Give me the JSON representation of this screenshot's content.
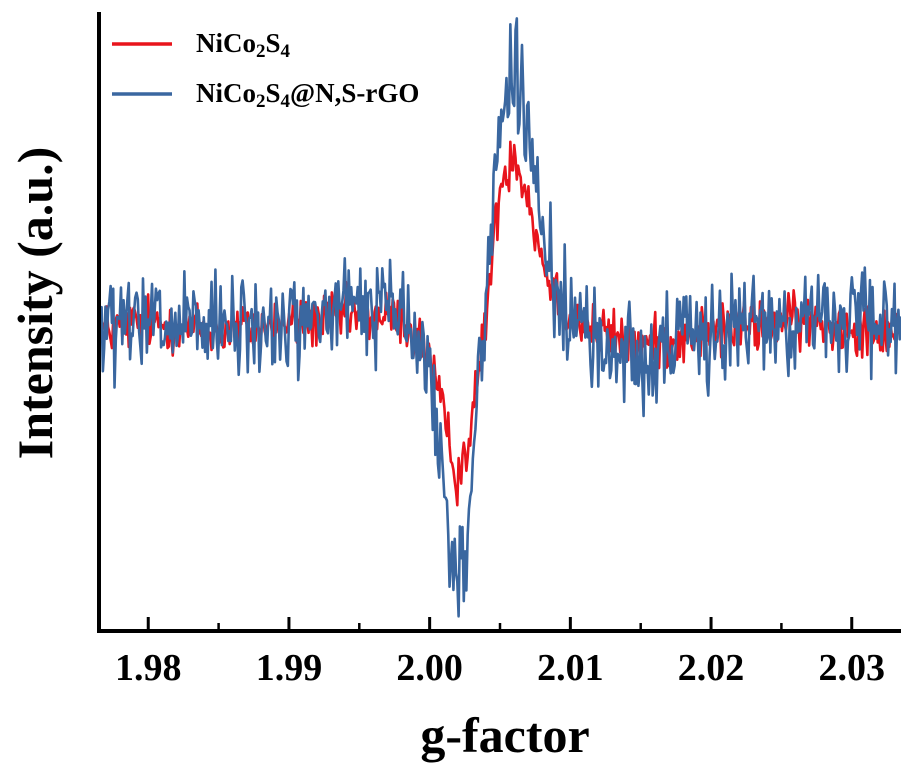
{
  "chart_data": {
    "type": "line",
    "xlabel": "g-factor",
    "ylabel": "Intensity (a.u.)",
    "xlim": [
      1.9765,
      2.0335
    ],
    "ylim": [
      -0.94,
      1.0
    ],
    "x_ticks": [
      1.98,
      1.99,
      2.0,
      2.01,
      2.02,
      2.03
    ],
    "x_tick_labels": [
      "1.98",
      "1.99",
      "2.00",
      "2.01",
      "2.02",
      "2.03"
    ],
    "y_ticks_shown": false,
    "grid": false,
    "legend_position": "top-left",
    "series": [
      {
        "name": "NiCo2S4",
        "legend_parts": [
          {
            "t": "NiCo",
            "sub": false
          },
          {
            "t": "2",
            "sub": true
          },
          {
            "t": "S",
            "sub": false
          },
          {
            "t": "4",
            "sub": true
          }
        ],
        "color": "#e8141c",
        "x": [
          1.9765,
          1.98,
          1.985,
          1.99,
          1.995,
          1.998,
          2.0,
          2.001,
          2.002,
          2.003,
          2.004,
          2.005,
          2.006,
          2.007,
          2.008,
          2.009,
          2.01,
          2.012,
          2.015,
          2.02,
          2.025,
          2.03,
          2.0335
        ],
        "y": [
          0.0,
          0.03,
          0.0,
          0.02,
          0.05,
          0.04,
          -0.08,
          -0.28,
          -0.46,
          -0.3,
          0.05,
          0.45,
          0.57,
          0.42,
          0.22,
          0.12,
          0.05,
          0.0,
          -0.05,
          0.0,
          0.03,
          0.02,
          0.0
        ]
      },
      {
        "name": "NiCo2S4@N,S-rGO",
        "legend_parts": [
          {
            "t": "NiCo",
            "sub": false
          },
          {
            "t": "2",
            "sub": true
          },
          {
            "t": "S",
            "sub": false
          },
          {
            "t": "4",
            "sub": true
          },
          {
            "t": "@N,S-rGO",
            "sub": false
          }
        ],
        "color": "#3a67a0",
        "x": [
          1.9765,
          1.98,
          1.985,
          1.99,
          1.995,
          1.998,
          2.0,
          2.001,
          2.0015,
          2.002,
          2.0025,
          2.003,
          2.004,
          2.005,
          2.006,
          2.007,
          2.008,
          2.009,
          2.01,
          2.012,
          2.015,
          2.02,
          2.025,
          2.03,
          2.0335
        ],
        "y": [
          0.0,
          0.02,
          0.0,
          0.02,
          0.08,
          0.06,
          -0.12,
          -0.48,
          -0.7,
          -0.8,
          -0.72,
          -0.4,
          0.1,
          0.68,
          0.82,
          0.6,
          0.3,
          0.14,
          0.05,
          -0.05,
          -0.08,
          0.0,
          0.04,
          0.03,
          0.0
        ]
      }
    ]
  }
}
